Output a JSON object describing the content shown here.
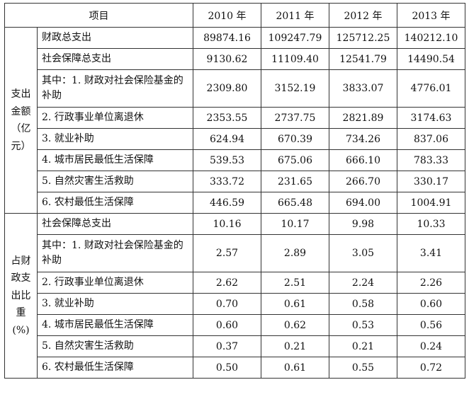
{
  "header": {
    "item_label": "项目",
    "years": [
      "2010 年",
      "2011 年",
      "2012 年",
      "2013 年"
    ]
  },
  "sections": [
    {
      "group_label_lines": [
        "支出",
        "金额",
        "（亿元）"
      ],
      "rows": [
        {
          "item": "财政总支出",
          "values": [
            "89874.16",
            "109247.79",
            "125712.25",
            "140212.10"
          ]
        },
        {
          "item": "社会保障总支出",
          "values": [
            "9130.62",
            "11109.40",
            "12541.79",
            "14490.54"
          ]
        },
        {
          "item": "其中：1. 财政对社会保险基金的补助",
          "values": [
            "2309.80",
            "3152.19",
            "3833.07",
            "4776.01"
          ]
        },
        {
          "item": "2. 行政事业单位离退休",
          "values": [
            "2353.55",
            "2737.75",
            "2821.89",
            "3174.63"
          ]
        },
        {
          "item": "3. 就业补助",
          "values": [
            "624.94",
            "670.39",
            "734.26",
            "837.06"
          ]
        },
        {
          "item": "4. 城市居民最低生活保障",
          "values": [
            "539.53",
            "675.06",
            "666.10",
            "783.33"
          ]
        },
        {
          "item": "5. 自然灾害生活救助",
          "values": [
            "333.72",
            "231.65",
            "266.70",
            "330.17"
          ]
        },
        {
          "item": "6. 农村最低生活保障",
          "values": [
            "446.59",
            "665.48",
            "694.00",
            "1004.91"
          ]
        }
      ]
    },
    {
      "group_label_lines": [
        "占财",
        "政支",
        "出比",
        "重(%)"
      ],
      "rows": [
        {
          "item": "社会保障总支出",
          "values": [
            "10.16",
            "10.17",
            "9.98",
            "10.33"
          ]
        },
        {
          "item": "其中：1. 财政对社会保险基金的补助",
          "values": [
            "2.57",
            "2.89",
            "3.05",
            "3.41"
          ]
        },
        {
          "item": "2. 行政事业单位离退休",
          "values": [
            "2.62",
            "2.51",
            "2.24",
            "2.26"
          ]
        },
        {
          "item": "3. 就业补助",
          "values": [
            "0.70",
            "0.61",
            "0.58",
            "0.60"
          ]
        },
        {
          "item": "4. 城市居民最低生活保障",
          "values": [
            "0.60",
            "0.62",
            "0.53",
            "0.56"
          ]
        },
        {
          "item": "5. 自然灾害生活救助",
          "values": [
            "0.37",
            "0.21",
            "0.21",
            "0.24"
          ]
        },
        {
          "item": "6. 农村最低生活保障",
          "values": [
            "0.50",
            "0.61",
            "0.55",
            "0.72"
          ]
        }
      ]
    }
  ]
}
